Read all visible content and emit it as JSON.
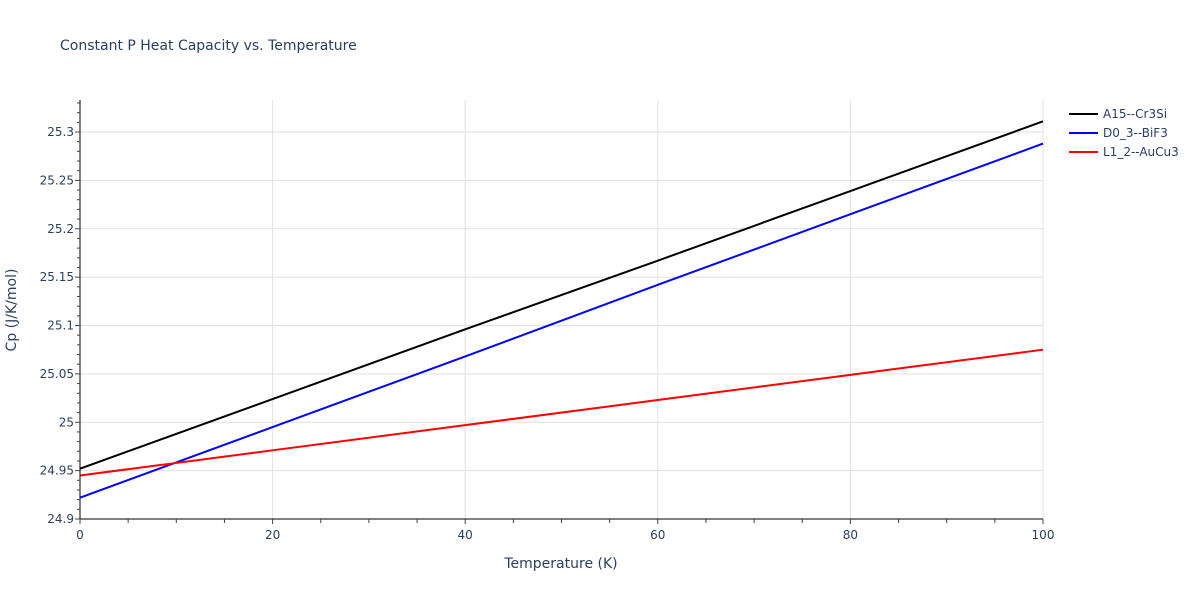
{
  "chart_data": {
    "type": "line",
    "title": "Constant P Heat Capacity vs. Temperature",
    "xlabel": "Temperature (K)",
    "ylabel": "Cp (J/K/mol)",
    "xlim": [
      0,
      100
    ],
    "ylim": [
      24.9,
      25.333
    ],
    "xticks": [
      0,
      20,
      40,
      60,
      80,
      100
    ],
    "xtick_labels": [
      "0",
      "20",
      "40",
      "60",
      "80",
      "100"
    ],
    "yticks": [
      24.9,
      24.95,
      25.0,
      25.05,
      25.1,
      25.15,
      25.2,
      25.25,
      25.3
    ],
    "ytick_labels": [
      "24.9",
      "24.95",
      "25",
      "25.05",
      "25.1",
      "25.15",
      "25.2",
      "25.25",
      "25.3"
    ],
    "grid": true,
    "legend_position": "right-top",
    "x": [
      0,
      20,
      40,
      60,
      80,
      100
    ],
    "series": [
      {
        "name": "A15--Cr3Si",
        "color": "#000000",
        "values": [
          24.952,
          25.024,
          25.096,
          25.167,
          25.239,
          25.311
        ]
      },
      {
        "name": "D0_3--BiF3",
        "color": "#0000ff",
        "values": [
          24.922,
          24.995,
          25.068,
          25.142,
          25.215,
          25.288
        ]
      },
      {
        "name": "L1_2--AuCu3",
        "color": "#ff0000",
        "values": [
          24.945,
          24.971,
          24.997,
          25.023,
          25.049,
          25.075
        ]
      }
    ]
  }
}
